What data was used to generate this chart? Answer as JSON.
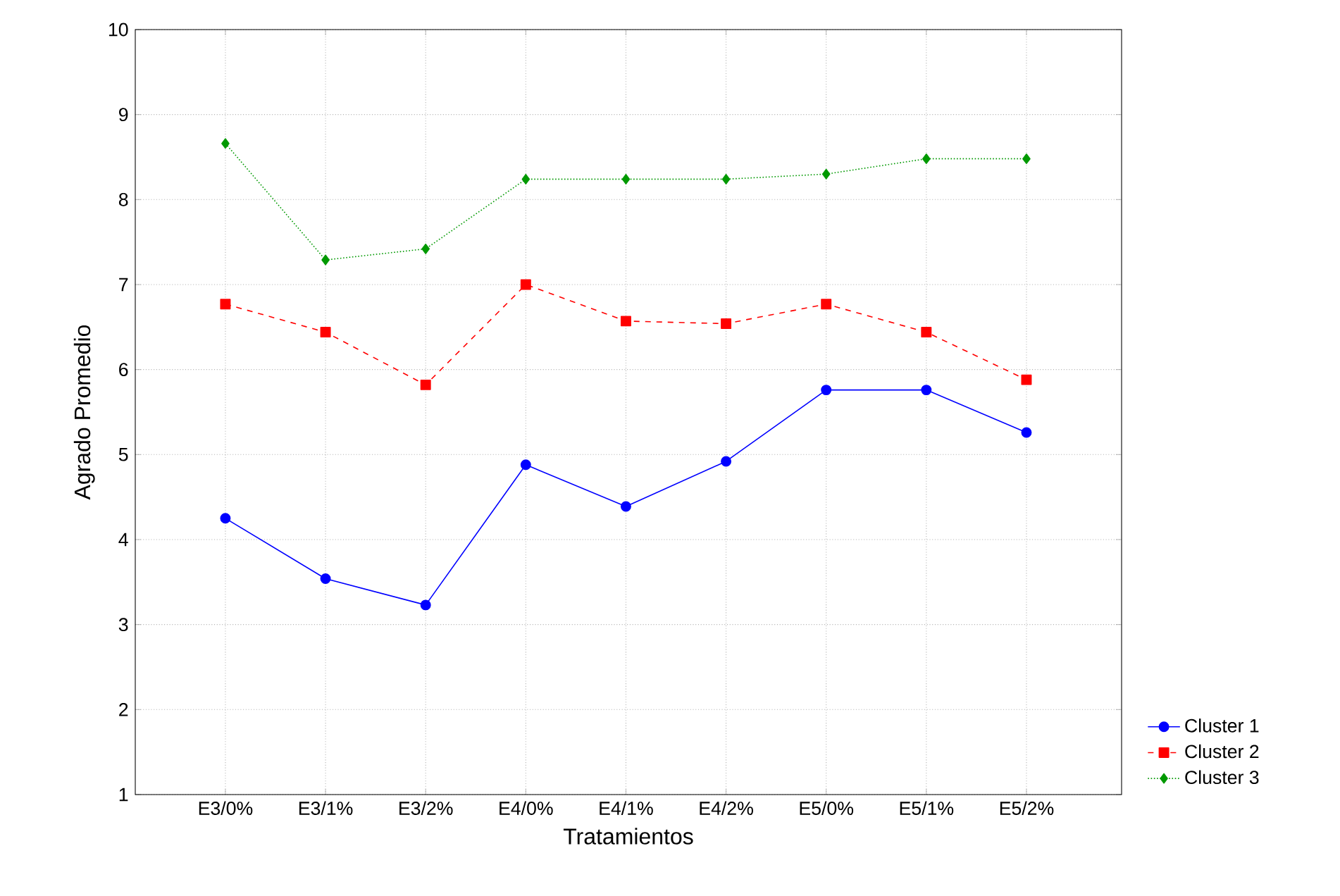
{
  "chart_data": {
    "type": "line",
    "xlabel": "Tratamientos",
    "ylabel": "Agrado Promedio",
    "categories": [
      "E3/0%",
      "E3/1%",
      "E3/2%",
      "E4/0%",
      "E4/1%",
      "E4/2%",
      "E5/0%",
      "E5/1%",
      "E5/2%"
    ],
    "series": [
      {
        "name": "Cluster 1",
        "color": "#0000ff",
        "marker": "circle",
        "line_style": "solid",
        "values": [
          4.25,
          3.54,
          3.23,
          4.88,
          4.39,
          4.92,
          5.76,
          5.76,
          5.26
        ]
      },
      {
        "name": "Cluster 2",
        "color": "#ff0000",
        "marker": "square",
        "line_style": "dashed",
        "values": [
          6.77,
          6.44,
          5.82,
          7.0,
          6.57,
          6.54,
          6.77,
          6.44,
          5.88
        ]
      },
      {
        "name": "Cluster 3",
        "color": "#009900",
        "marker": "diamond",
        "line_style": "dotted",
        "values": [
          8.66,
          7.29,
          7.42,
          8.24,
          8.24,
          8.24,
          8.3,
          8.48,
          8.48
        ]
      }
    ],
    "ylim": [
      1,
      10
    ],
    "yticks": [
      1,
      2,
      3,
      4,
      5,
      6,
      7,
      8,
      9,
      10
    ],
    "grid": true,
    "legend": "bottom right"
  }
}
